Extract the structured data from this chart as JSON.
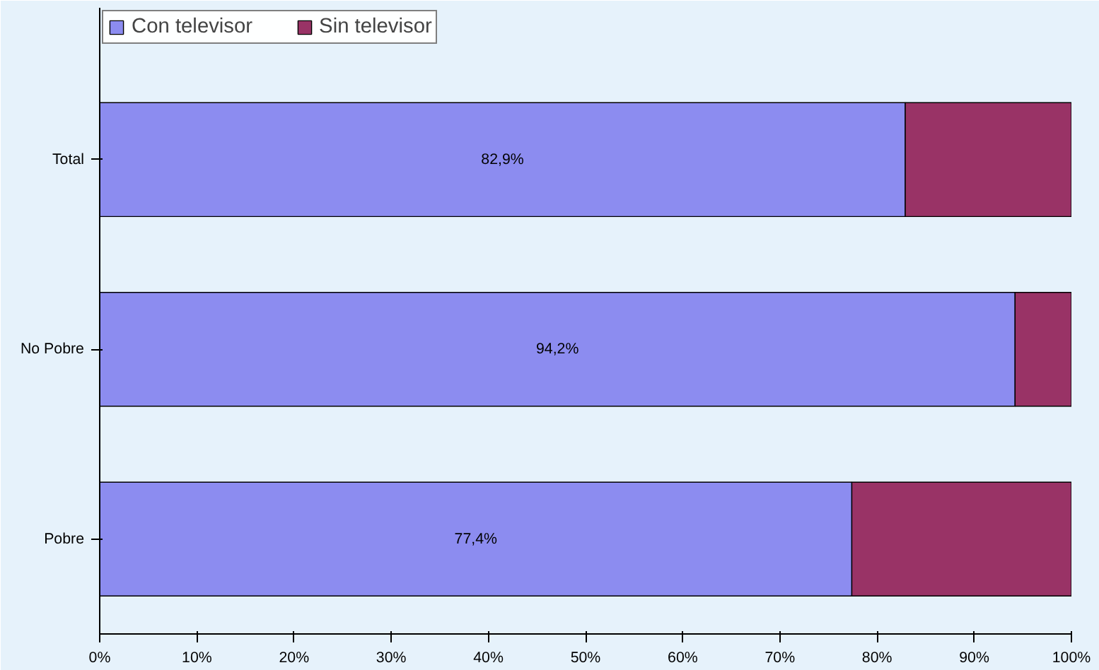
{
  "chart_data": {
    "type": "bar",
    "orientation": "horizontal",
    "stacked": true,
    "categories": [
      "Total",
      "No Pobre",
      "Pobre"
    ],
    "series": [
      {
        "name": "Con televisor",
        "color": "#8c8cf0",
        "values": [
          82.9,
          94.2,
          77.4
        ],
        "value_labels": [
          "82,9%",
          "94,2%",
          "77,4%"
        ]
      },
      {
        "name": "Sin televisor",
        "color": "#993366",
        "values": [
          17.1,
          5.8,
          22.6
        ]
      }
    ],
    "xlim": [
      0,
      100
    ],
    "xticks": [
      {
        "value": 0,
        "label": "0%"
      },
      {
        "value": 10,
        "label": "10%"
      },
      {
        "value": 20,
        "label": "20%"
      },
      {
        "value": 30,
        "label": "30%"
      },
      {
        "value": 40,
        "label": "40%"
      },
      {
        "value": 50,
        "label": "50%"
      },
      {
        "value": 60,
        "label": "60%"
      },
      {
        "value": 70,
        "label": "70%"
      },
      {
        "value": 80,
        "label": "80%"
      },
      {
        "value": 90,
        "label": "90%"
      },
      {
        "value": 100,
        "label": "100%"
      }
    ],
    "grid": false,
    "legend": "top left"
  }
}
